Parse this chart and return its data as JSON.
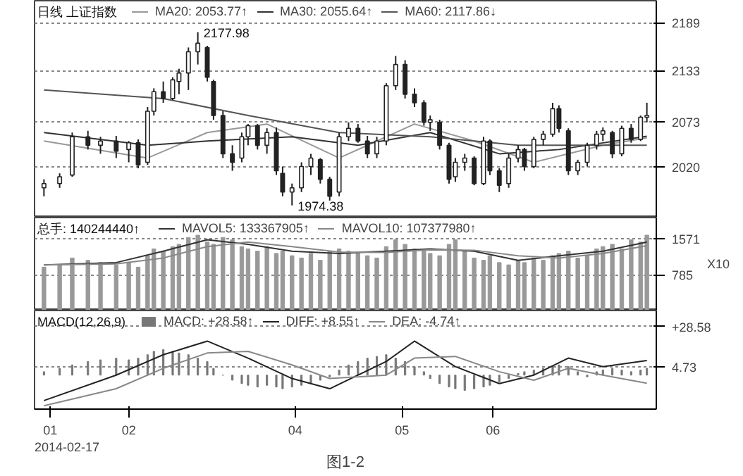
{
  "chart_data": [
    {
      "type": "candlestick",
      "title": "日线 上证指数",
      "x": [
        "2014-01-11",
        "2014-01-16",
        "2014-01-20",
        "2014-01-25",
        "2014-01-29",
        "2014-02-03",
        "2014-02-07",
        "2014-02-10",
        "2014-02-13",
        "2014-02-15",
        "2014-02-18",
        "2014-02-21",
        "2014-02-23",
        "2014-02-26",
        "2014-03-01",
        "2014-03-04",
        "2014-03-06",
        "2014-03-09",
        "2014-03-12",
        "2014-03-15",
        "2014-03-17",
        "2014-03-20",
        "2014-03-23",
        "2014-03-26",
        "2014-03-28",
        "2014-03-31",
        "2014-04-03",
        "2014-04-06",
        "2014-04-09",
        "2014-04-12",
        "2014-04-15",
        "2014-04-18",
        "2014-04-21",
        "2014-04-24",
        "2014-04-27",
        "2014-04-30",
        "2014-05-03",
        "2014-05-06",
        "2014-05-09",
        "2014-05-12",
        "2014-05-14",
        "2014-05-17",
        "2014-05-20",
        "2014-05-22",
        "2014-05-25",
        "2014-05-28",
        "2014-05-31",
        "2014-06-02",
        "2014-06-05",
        "2014-06-08",
        "2014-06-11",
        "2014-06-13",
        "2014-06-16",
        "2014-06-19",
        "2014-06-22",
        "2014-06-24",
        "2014-06-27",
        "2014-06-30",
        "2014-07-03",
        "2014-07-06",
        "2014-07-08",
        "2014-07-11",
        "2014-07-14",
        "2014-07-17",
        "2014-07-20",
        "2014-07-22"
      ],
      "ohlc": [
        [
          1995,
          2005,
          1985,
          2000
        ],
        [
          2000,
          2012,
          1995,
          2008
        ],
        [
          2010,
          2060,
          2008,
          2055
        ],
        [
          2055,
          2062,
          2040,
          2045
        ],
        [
          2045,
          2055,
          2035,
          2050
        ],
        [
          2050,
          2056,
          2030,
          2038
        ],
        [
          2040,
          2050,
          2025,
          2048
        ],
        [
          2048,
          2052,
          2018,
          2022
        ],
        [
          2025,
          2090,
          2022,
          2085
        ],
        [
          2085,
          2112,
          2080,
          2108
        ],
        [
          2108,
          2120,
          2095,
          2100
        ],
        [
          2100,
          2125,
          2098,
          2122
        ],
        [
          2120,
          2135,
          2105,
          2130
        ],
        [
          2130,
          2160,
          2110,
          2155
        ],
        [
          2155,
          2177.98,
          2140,
          2165
        ],
        [
          2160,
          2162,
          2120,
          2125
        ],
        [
          2120,
          2122,
          2075,
          2080
        ],
        [
          2080,
          2085,
          2030,
          2035
        ],
        [
          2035,
          2045,
          2015,
          2025
        ],
        [
          2030,
          2060,
          2025,
          2055
        ],
        [
          2055,
          2070,
          2045,
          2068
        ],
        [
          2068,
          2070,
          2040,
          2045
        ],
        [
          2045,
          2065,
          2035,
          2060
        ],
        [
          2060,
          2066,
          2010,
          2015
        ],
        [
          2012,
          2020,
          1985,
          1990
        ],
        [
          1990,
          2000,
          1974.38,
          1995
        ],
        [
          1995,
          2025,
          1990,
          2020
        ],
        [
          2020,
          2035,
          2010,
          2030
        ],
        [
          2028,
          2030,
          2000,
          2005
        ],
        [
          2005,
          2008,
          1980,
          1985
        ],
        [
          1990,
          2060,
          1985,
          2055
        ],
        [
          2055,
          2072,
          2050,
          2065
        ],
        [
          2065,
          2070,
          2048,
          2050
        ],
        [
          2050,
          2056,
          2030,
          2035
        ],
        [
          2035,
          2055,
          2030,
          2050
        ],
        [
          2050,
          2118,
          2045,
          2115
        ],
        [
          2115,
          2150,
          2110,
          2140
        ],
        [
          2140,
          2145,
          2100,
          2105
        ],
        [
          2105,
          2112,
          2090,
          2095
        ],
        [
          2095,
          2098,
          2068,
          2072
        ],
        [
          2072,
          2080,
          2062,
          2075
        ],
        [
          2072,
          2075,
          2040,
          2045
        ],
        [
          2045,
          2048,
          2000,
          2005
        ],
        [
          2008,
          2030,
          2002,
          2025
        ],
        [
          2025,
          2035,
          2015,
          2030
        ],
        [
          2030,
          2032,
          1998,
          2000
        ],
        [
          2000,
          2055,
          1998,
          2050
        ],
        [
          2050,
          2052,
          2010,
          2015
        ],
        [
          2015,
          2018,
          1990,
          1998
        ],
        [
          2000,
          2035,
          1995,
          2030
        ],
        [
          2030,
          2045,
          2025,
          2040
        ],
        [
          2040,
          2042,
          2015,
          2020
        ],
        [
          2020,
          2055,
          2018,
          2052
        ],
        [
          2052,
          2062,
          2045,
          2058
        ],
        [
          2058,
          2095,
          2055,
          2088
        ],
        [
          2088,
          2092,
          2060,
          2065
        ],
        [
          2062,
          2065,
          2010,
          2015
        ],
        [
          2015,
          2028,
          2010,
          2025
        ],
        [
          2025,
          2048,
          2020,
          2045
        ],
        [
          2045,
          2062,
          2040,
          2058
        ],
        [
          2058,
          2066,
          2050,
          2062
        ],
        [
          2060,
          2062,
          2030,
          2035
        ],
        [
          2035,
          2068,
          2032,
          2065
        ],
        [
          2065,
          2070,
          2048,
          2052
        ],
        [
          2052,
          2080,
          2050,
          2078
        ],
        [
          2078,
          2095,
          2072,
          2080
        ]
      ],
      "colors": [
        "#ffffff",
        "#ffffff",
        "#ffffff",
        "#222222",
        "#ffffff",
        "#222222",
        "#ffffff",
        "#222222",
        "#ffffff",
        "#ffffff",
        "#222222",
        "#ffffff",
        "#ffffff",
        "#ffffff",
        "#ffffff",
        "#222222",
        "#222222",
        "#222222",
        "#222222",
        "#ffffff",
        "#ffffff",
        "#222222",
        "#ffffff",
        "#222222",
        "#222222",
        "#ffffff",
        "#ffffff",
        "#ffffff",
        "#222222",
        "#222222",
        "#ffffff",
        "#ffffff",
        "#222222",
        "#222222",
        "#ffffff",
        "#ffffff",
        "#ffffff",
        "#222222",
        "#222222",
        "#222222",
        "#ffffff",
        "#222222",
        "#222222",
        "#ffffff",
        "#ffffff",
        "#222222",
        "#ffffff",
        "#222222",
        "#222222",
        "#ffffff",
        "#ffffff",
        "#222222",
        "#ffffff",
        "#ffffff",
        "#ffffff",
        "#222222",
        "#222222",
        "#ffffff",
        "#ffffff",
        "#ffffff",
        "#ffffff",
        "#222222",
        "#ffffff",
        "#222222",
        "#ffffff",
        "#ffffff"
      ],
      "series": [
        {
          "type": "line",
          "name": "MA20: 2053.77↑",
          "color": "#999999",
          "x": [
            "2014-01-11",
            "2014-02-13",
            "2014-03-04",
            "2014-03-23",
            "2014-04-15",
            "2014-05-09",
            "2014-05-28",
            "2014-06-16",
            "2014-07-08",
            "2014-07-22"
          ],
          "values": [
            2050,
            2030,
            2060,
            2070,
            2030,
            2070,
            2050,
            2025,
            2045,
            2053.77
          ]
        },
        {
          "type": "line",
          "name": "MA30: 2055.64↑",
          "color": "#333333",
          "x": [
            "2014-01-11",
            "2014-02-13",
            "2014-03-04",
            "2014-03-31",
            "2014-04-21",
            "2014-05-14",
            "2014-06-05",
            "2014-06-24",
            "2014-07-22"
          ],
          "values": [
            2060,
            2045,
            2050,
            2055,
            2045,
            2060,
            2035,
            2040,
            2055.64
          ]
        },
        {
          "type": "line",
          "name": "MA60: 2117.86↓",
          "color": "#555555",
          "x": [
            "2014-01-11",
            "2014-02-18",
            "2014-03-17",
            "2014-04-15",
            "2014-05-14",
            "2014-06-11",
            "2014-07-08",
            "2014-07-22"
          ],
          "values": [
            2110,
            2100,
            2080,
            2060,
            2055,
            2045,
            2045,
            2045
          ]
        }
      ],
      "annotations": [
        {
          "text": "2177.98",
          "x": "2014-03-01",
          "y": 2177.98
        },
        {
          "text": "1974.38",
          "x": "2014-03-31",
          "y": 1974.38
        }
      ],
      "xlim": [
        "2014-01-08",
        "2014-07-25"
      ],
      "ylim": [
        1960,
        2215
      ],
      "yticks": [
        2020,
        2073,
        2133,
        2189
      ],
      "grid": "y",
      "legend": "top left",
      "tick_labels": "y"
    },
    {
      "type": "bar",
      "title": "总手: 140244440↑",
      "x": [
        "2014-01-11",
        "2014-01-16",
        "2014-01-20",
        "2014-01-25",
        "2014-01-29",
        "2014-02-03",
        "2014-02-07",
        "2014-02-10",
        "2014-02-13",
        "2014-02-15",
        "2014-02-18",
        "2014-02-21",
        "2014-02-23",
        "2014-02-26",
        "2014-03-01",
        "2014-03-04",
        "2014-03-06",
        "2014-03-09",
        "2014-03-12",
        "2014-03-15",
        "2014-03-17",
        "2014-03-20",
        "2014-03-23",
        "2014-03-26",
        "2014-03-28",
        "2014-03-31",
        "2014-04-03",
        "2014-04-06",
        "2014-04-09",
        "2014-04-12",
        "2014-04-15",
        "2014-04-18",
        "2014-04-21",
        "2014-04-24",
        "2014-04-27",
        "2014-04-30",
        "2014-05-03",
        "2014-05-06",
        "2014-05-09",
        "2014-05-12",
        "2014-05-14",
        "2014-05-17",
        "2014-05-20",
        "2014-05-22",
        "2014-05-25",
        "2014-05-28",
        "2014-05-31",
        "2014-06-02",
        "2014-06-05",
        "2014-06-08",
        "2014-06-11",
        "2014-06-13",
        "2014-06-16",
        "2014-06-19",
        "2014-06-22",
        "2014-06-24",
        "2014-06-27",
        "2014-06-30",
        "2014-07-03",
        "2014-07-06",
        "2014-07-08",
        "2014-07-11",
        "2014-07-14",
        "2014-07-17",
        "2014-07-20",
        "2014-07-22"
      ],
      "series": [
        {
          "type": "bar",
          "color": "#999999",
          "values": [
            950,
            1000,
            1150,
            1100,
            1050,
            1000,
            1050,
            950,
            1200,
            1350,
            1300,
            1400,
            1450,
            1600,
            1650,
            1500,
            1450,
            1600,
            1550,
            1400,
            1350,
            1300,
            1400,
            1250,
            1300,
            1200,
            1150,
            1250,
            1100,
            1300,
            1350,
            1300,
            1250,
            1200,
            1150,
            1400,
            1550,
            1450,
            1350,
            1300,
            1250,
            1200,
            1450,
            1550,
            1300,
            1150,
            1100,
            1200,
            1050,
            1000,
            1100,
            1050,
            1150,
            1100,
            1200,
            1250,
            1300,
            1150,
            1200,
            1350,
            1400,
            1450,
            1350,
            1550,
            1500,
            1650
          ]
        },
        {
          "type": "line",
          "name": "MAVOL5: 133367905↑",
          "color": "#333333",
          "x": [
            "2014-01-11",
            "2014-02-03",
            "2014-02-18",
            "2014-03-04",
            "2014-03-17",
            "2014-03-31",
            "2014-04-15",
            "2014-04-30",
            "2014-05-14",
            "2014-05-28",
            "2014-06-11",
            "2014-06-24",
            "2014-07-08",
            "2014-07-22"
          ],
          "values": [
            1000,
            1050,
            1300,
            1550,
            1450,
            1300,
            1250,
            1300,
            1350,
            1300,
            1100,
            1200,
            1300,
            1500
          ]
        },
        {
          "type": "line",
          "name": "MAVOL10: 107377980↑",
          "color": "#888888",
          "x": [
            "2014-01-11",
            "2014-02-03",
            "2014-02-18",
            "2014-03-04",
            "2014-03-17",
            "2014-03-31",
            "2014-04-15",
            "2014-04-30",
            "2014-05-14",
            "2014-05-28",
            "2014-06-11",
            "2014-06-24",
            "2014-07-08",
            "2014-07-22"
          ],
          "values": [
            1000,
            1020,
            1150,
            1400,
            1500,
            1400,
            1280,
            1270,
            1330,
            1320,
            1200,
            1150,
            1250,
            1420
          ]
        }
      ],
      "xlim": [
        "2014-01-08",
        "2014-07-25"
      ],
      "ylim": [
        0,
        2035
      ],
      "ylabel": "X10",
      "yticks": [
        785,
        1571
      ],
      "grid": "y",
      "legend": "top left",
      "tick_labels": "y"
    },
    {
      "type": "bar",
      "title": "MACD(12,26,9)",
      "x": [
        "2014-01-11",
        "2014-01-16",
        "2014-01-20",
        "2014-01-25",
        "2014-01-29",
        "2014-02-03",
        "2014-02-07",
        "2014-02-10",
        "2014-02-13",
        "2014-02-15",
        "2014-02-18",
        "2014-02-21",
        "2014-02-23",
        "2014-02-26",
        "2014-03-01",
        "2014-03-04",
        "2014-03-06",
        "2014-03-09",
        "2014-03-12",
        "2014-03-15",
        "2014-03-17",
        "2014-03-20",
        "2014-03-23",
        "2014-03-26",
        "2014-03-28",
        "2014-03-31",
        "2014-04-03",
        "2014-04-06",
        "2014-04-09",
        "2014-04-12",
        "2014-04-15",
        "2014-04-18",
        "2014-04-21",
        "2014-04-24",
        "2014-04-27",
        "2014-04-30",
        "2014-05-03",
        "2014-05-06",
        "2014-05-09",
        "2014-05-12",
        "2014-05-14",
        "2014-05-17",
        "2014-05-20",
        "2014-05-22",
        "2014-05-25",
        "2014-05-28",
        "2014-05-31",
        "2014-06-02",
        "2014-06-05",
        "2014-06-08",
        "2014-06-11",
        "2014-06-13",
        "2014-06-16",
        "2014-06-19",
        "2014-06-22",
        "2014-06-24",
        "2014-06-27",
        "2014-06-30",
        "2014-07-03",
        "2014-07-06",
        "2014-07-08",
        "2014-07-11",
        "2014-07-14",
        "2014-07-17",
        "2014-07-20",
        "2014-07-22"
      ],
      "series": [
        {
          "type": "bar",
          "name": "MACD: +28.58↑",
          "color": "#777777",
          "values": [
            2,
            4,
            6,
            8,
            9,
            10,
            9,
            10,
            12,
            14,
            15,
            14,
            13,
            12,
            10,
            8,
            4,
            0,
            -3,
            -5,
            -6,
            -7,
            -6,
            -7,
            -8,
            -7,
            -6,
            -5,
            -3,
            -1,
            3,
            6,
            8,
            10,
            11,
            12,
            10,
            8,
            5,
            2,
            -2,
            -5,
            -7,
            -8,
            -9,
            -8,
            -7,
            -6,
            -4,
            -2,
            1,
            2,
            3,
            4,
            5,
            6,
            5,
            2,
            -1,
            2,
            3,
            4,
            3,
            2,
            3,
            4
          ]
        },
        {
          "type": "line",
          "name": "DIFF: +8.55↑",
          "color": "#222222",
          "x": [
            "2014-01-11",
            "2014-02-03",
            "2014-02-18",
            "2014-03-04",
            "2014-03-17",
            "2014-03-31",
            "2014-04-12",
            "2014-04-30",
            "2014-05-09",
            "2014-05-22",
            "2014-06-05",
            "2014-06-16",
            "2014-06-27",
            "2014-07-08",
            "2014-07-22"
          ],
          "values": [
            -15,
            0,
            12,
            20,
            10,
            -2,
            -8,
            8,
            20,
            5,
            -5,
            0,
            10,
            5,
            8.55
          ]
        },
        {
          "type": "line",
          "name": "DEA: -4.74↑",
          "color": "#888888",
          "x": [
            "2014-01-11",
            "2014-02-03",
            "2014-02-18",
            "2014-03-04",
            "2014-03-17",
            "2014-03-31",
            "2014-04-12",
            "2014-04-30",
            "2014-05-09",
            "2014-05-22",
            "2014-06-05",
            "2014-06-16",
            "2014-06-27",
            "2014-07-08",
            "2014-07-22"
          ],
          "values": [
            -18,
            -8,
            4,
            13,
            14,
            6,
            -2,
            0,
            10,
            11,
            2,
            -3,
            4,
            0,
            -4.74
          ]
        }
      ],
      "annotations": [
        "2014-02-17",
        "图1-2"
      ],
      "xlim": [
        "2014-01-08",
        "2014-07-25"
      ],
      "ylim": [
        -20,
        38
      ],
      "yticks": [
        {
          "value": 28.58,
          "label": "+28.58"
        },
        4.73
      ],
      "xticks": [
        {
          "value": "2014-01-13",
          "label": "01"
        },
        {
          "value": "2014-02-07",
          "label": "02"
        },
        {
          "value": "2014-04-01",
          "label": "04"
        },
        {
          "value": "2014-05-05",
          "label": "05"
        },
        {
          "value": "2014-06-03",
          "label": "06"
        }
      ],
      "grid": "y",
      "legend": "top left"
    }
  ]
}
